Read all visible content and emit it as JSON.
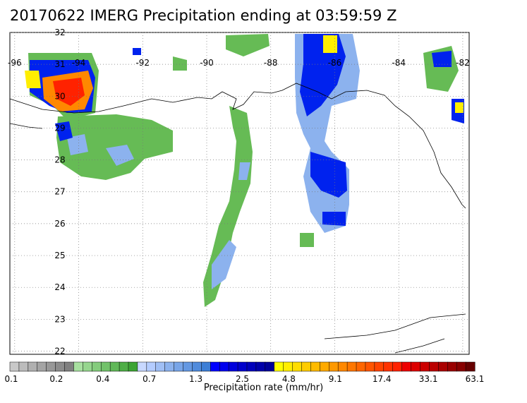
{
  "title": "20170622 IMERG Precipitation ending at 03:59:59 Z",
  "lon_labels": [
    {
      "lon": -96,
      "text": "-96"
    },
    {
      "lon": -94,
      "text": "-94"
    },
    {
      "lon": -92,
      "text": "-92"
    },
    {
      "lon": -90,
      "text": "-90"
    },
    {
      "lon": -88,
      "text": "-88"
    },
    {
      "lon": -86,
      "text": "-86"
    },
    {
      "lon": -84,
      "text": "-84"
    },
    {
      "lon": -82,
      "text": "-82"
    }
  ],
  "lat_labels": [
    {
      "lat": 32,
      "text": "32"
    },
    {
      "lat": 31,
      "text": "31"
    },
    {
      "lat": 30,
      "text": "30"
    },
    {
      "lat": 29,
      "text": "29"
    },
    {
      "lat": 28,
      "text": "28"
    },
    {
      "lat": 27,
      "text": "27"
    },
    {
      "lat": 26,
      "text": "26"
    },
    {
      "lat": 25,
      "text": "25"
    },
    {
      "lat": 24,
      "text": "24"
    },
    {
      "lat": 23,
      "text": "23"
    },
    {
      "lat": 22,
      "text": "22"
    }
  ],
  "colorbar": {
    "title": "Precipitation rate (mm/hr)",
    "tick_labels": [
      "0.1",
      "0.2",
      "0.4",
      "0.7",
      "1.3",
      "2.5",
      "4.8",
      "9.1",
      "17.4",
      "33.1",
      "63.1"
    ],
    "colors": [
      "#c8c8c8",
      "#bcbcbc",
      "#b0b0b0",
      "#a4a4a4",
      "#989898",
      "#8c8c8c",
      "#808080",
      "#a8e0a0",
      "#96d68e",
      "#84cc7c",
      "#72c26a",
      "#60b858",
      "#4eae46",
      "#3ca434",
      "#c8d8ff",
      "#b4ccff",
      "#a0bff5",
      "#8cb2ee",
      "#78a5e8",
      "#6498e2",
      "#508bdc",
      "#3c7ed6",
      "#0000ff",
      "#0000ee",
      "#0000dd",
      "#0000cc",
      "#0000bb",
      "#0000aa",
      "#000099",
      "#ffff00",
      "#ffee00",
      "#ffdd00",
      "#ffcc00",
      "#ffbb00",
      "#ffaa00",
      "#ff9900",
      "#ff8800",
      "#ff7700",
      "#ff6600",
      "#ff5500",
      "#ff4400",
      "#ff3300",
      "#ff2200",
      "#ee0000",
      "#dd0000",
      "#cc0000",
      "#bb0000",
      "#aa0000",
      "#990000",
      "#880000",
      "#660000"
    ]
  },
  "precip_legend_colors": {
    "trace": "#a8a8a8",
    "light": "#66bb55",
    "moderate": "#8cb2ee",
    "heavy_blue": "#0022ee",
    "yellow": "#ffee00",
    "orange": "#ff8800",
    "red": "#ff2200"
  }
}
